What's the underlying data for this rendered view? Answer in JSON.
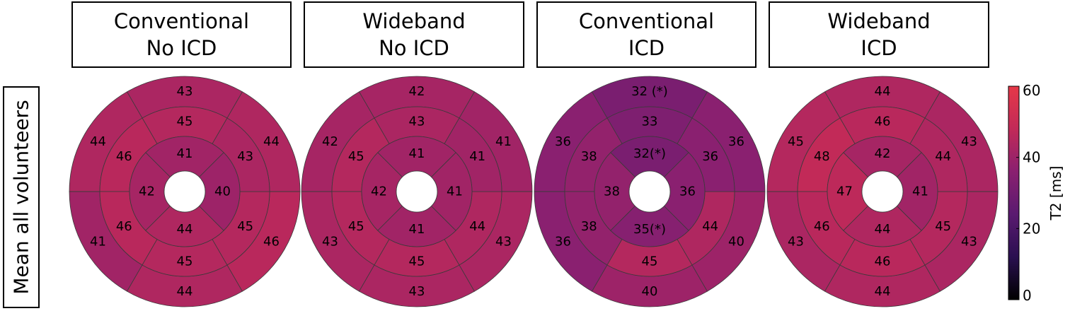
{
  "chart_data": {
    "type": "heatmap",
    "subtype": "bullseye-17-segment",
    "row_label": "Mean all volunteers",
    "panels": [
      {
        "title": [
          "Conventional",
          "No ICD"
        ],
        "values": [
          43,
          44,
          41,
          44,
          46,
          44,
          45,
          46,
          46,
          45,
          45,
          43,
          41,
          42,
          44,
          40
        ]
      },
      {
        "title": [
          "Wideband",
          "No ICD"
        ],
        "values": [
          42,
          42,
          43,
          43,
          43,
          41,
          43,
          45,
          45,
          45,
          44,
          41,
          41,
          42,
          41,
          41
        ]
      },
      {
        "title": [
          "Conventional",
          "ICD"
        ],
        "values": [
          "32 (*)",
          36,
          36,
          40,
          40,
          36,
          33,
          38,
          38,
          45,
          44,
          36,
          "32(*)",
          38,
          "35(*)",
          36
        ]
      },
      {
        "title": [
          "Wideband",
          "ICD"
        ],
        "values": [
          44,
          45,
          43,
          44,
          43,
          43,
          46,
          48,
          46,
          46,
          45,
          44,
          42,
          47,
          44,
          41
        ]
      }
    ],
    "colorbar": {
      "label": "T2 [ms]",
      "range": [
        0,
        60
      ],
      "ticks": [
        0,
        20,
        40,
        60
      ],
      "colors": [
        "#000000",
        "#2a1050",
        "#5a1a70",
        "#8a2070",
        "#c22a58",
        "#e63848"
      ]
    },
    "grid": false
  }
}
